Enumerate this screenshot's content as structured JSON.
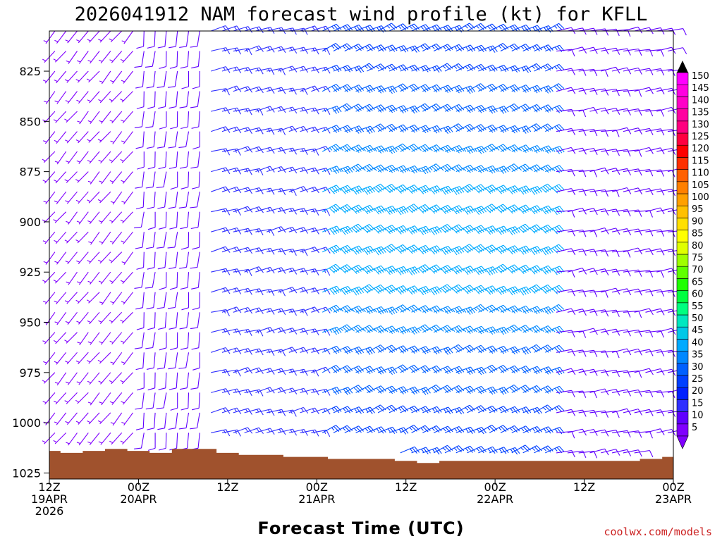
{
  "chart_data": {
    "type": "wind-barb-time-height",
    "title": "2026041912 NAM forecast wind profile (kt) for KFLL",
    "xlabel": "Forecast Time (UTC)",
    "ylabel": "",
    "units": "kt",
    "credit": "coolwx.com/models",
    "y_axis": {
      "inverted": true,
      "range": [
        805,
        1028
      ],
      "ticks": [
        "825",
        "850",
        "875",
        "900",
        "925",
        "950",
        "975",
        "1000",
        "1025"
      ]
    },
    "x_axis": {
      "range_hours": [
        0,
        84
      ],
      "ticks": [
        {
          "hour": 0,
          "line1": "12Z",
          "line2": "19APR",
          "line3": "2026"
        },
        {
          "hour": 12,
          "line1": "00Z",
          "line2": "20APR",
          "line3": ""
        },
        {
          "hour": 24,
          "line1": "12Z",
          "line2": "",
          "line3": ""
        },
        {
          "hour": 36,
          "line1": "00Z",
          "line2": "21APR",
          "line3": ""
        },
        {
          "hour": 48,
          "line1": "12Z",
          "line2": "",
          "line3": ""
        },
        {
          "hour": 60,
          "line1": "00Z",
          "line2": "22APR",
          "line3": ""
        },
        {
          "hour": 72,
          "line1": "12Z",
          "line2": "",
          "line3": ""
        },
        {
          "hour": 84,
          "line1": "00Z",
          "line2": "23APR",
          "line3": ""
        }
      ]
    },
    "surface_pressure": {
      "hours": [
        0,
        3,
        6,
        9,
        12,
        15,
        18,
        21,
        24,
        27,
        30,
        33,
        36,
        39,
        42,
        45,
        48,
        51,
        54,
        57,
        60,
        63,
        66,
        69,
        72,
        75,
        78,
        81,
        84
      ],
      "values_hpa": [
        1014,
        1015,
        1014,
        1013,
        1014,
        1015,
        1013,
        1013,
        1015,
        1016,
        1016,
        1017,
        1017,
        1018,
        1018,
        1018,
        1019,
        1020,
        1019,
        1019,
        1019,
        1019,
        1019,
        1019,
        1019,
        1019,
        1019,
        1018,
        1017
      ]
    },
    "wind_speed_scale_kt": [
      "5",
      "10",
      "15",
      "20",
      "25",
      "30",
      "35",
      "40",
      "45",
      "50",
      "55",
      "60",
      "65",
      "70",
      "75",
      "80",
      "85",
      "90",
      "95",
      "100",
      "105",
      "110",
      "115",
      "120",
      "125",
      "130",
      "135",
      "140",
      "145",
      "150"
    ],
    "wind_speed_colors": [
      "#8000ff",
      "#6000ff",
      "#3030ff",
      "#0020ff",
      "#0040ff",
      "#0060ff",
      "#0088ff",
      "#00aaff",
      "#00c8e8",
      "#00e8c0",
      "#00ff80",
      "#00ff40",
      "#20ff00",
      "#60ff00",
      "#a0ff00",
      "#e0ff00",
      "#ffff00",
      "#ffe000",
      "#ffc000",
      "#ffa000",
      "#ff8000",
      "#ff6000",
      "#ff3000",
      "#ff0000",
      "#ff0040",
      "#ff0080",
      "#ff00a0",
      "#ff00c8",
      "#ff00e0",
      "#ff00ff"
    ],
    "wind_field_model": {
      "levels_hpa": [
        805,
        815,
        825,
        835,
        845,
        855,
        865,
        875,
        885,
        895,
        905,
        915,
        925,
        935,
        945,
        955,
        965,
        975,
        985,
        995,
        1005,
        1015
      ],
      "time_step_hours": 1.5,
      "phases": [
        {
          "from_hour": 0,
          "to_hour": 11,
          "direction_deg": 220,
          "speed_kt": 6
        },
        {
          "from_hour": 12,
          "to_hour": 20,
          "direction_deg": 185,
          "speed_kt": 9
        },
        {
          "from_hour": 21,
          "to_hour": 35,
          "direction_deg": 75,
          "speed_kt": 14
        },
        {
          "from_hour": 36,
          "to_hour": 66,
          "direction_deg": 65,
          "speed_kt": 30
        },
        {
          "from_hour": 67,
          "to_hour": 84,
          "direction_deg": 80,
          "speed_kt": 12
        }
      ]
    }
  }
}
